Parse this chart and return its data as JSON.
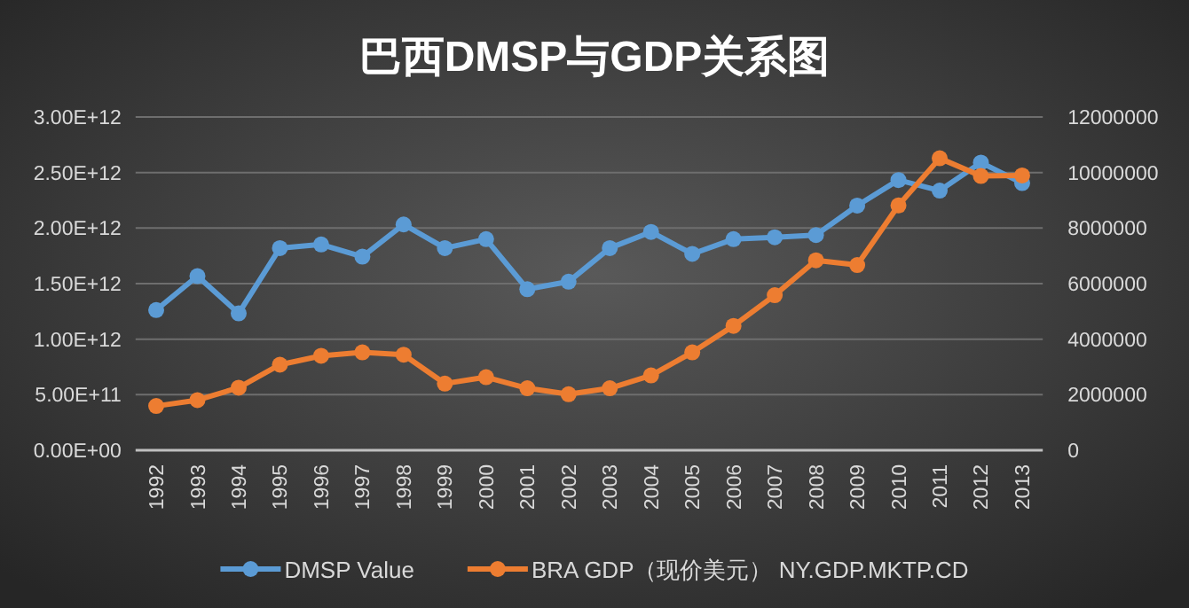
{
  "chart_data": {
    "type": "line",
    "title": "巴西DMSP与GDP关系图",
    "categories": [
      "1992",
      "1993",
      "1994",
      "1995",
      "1996",
      "1997",
      "1998",
      "1999",
      "2000",
      "2001",
      "2002",
      "2003",
      "2004",
      "2005",
      "2006",
      "2007",
      "2008",
      "2009",
      "2010",
      "2011",
      "2012",
      "2013"
    ],
    "series": [
      {
        "name": "DMSP Value",
        "color": "#5b9bd5",
        "axis": "y2",
        "values": [
          5050000,
          6270000,
          4930000,
          7280000,
          7410000,
          6970000,
          8130000,
          7280000,
          7600000,
          5800000,
          6070000,
          7280000,
          7860000,
          7070000,
          7600000,
          7670000,
          7750000,
          8810000,
          9730000,
          9350000,
          10360000,
          9620000
        ]
      },
      {
        "name": "BRA GDP（现价美元） NY.GDP.MKTP.CD",
        "color": "#ed7d31",
        "axis": "y",
        "values": [
          398000000000.0,
          451000000000.0,
          563000000000.0,
          770000000000.0,
          850000000000.0,
          881000000000.0,
          860000000000.0,
          600000000000.0,
          658000000000.0,
          558000000000.0,
          504000000000.0,
          558000000000.0,
          674000000000.0,
          881000000000.0,
          1120000000000.0,
          1396000000000.0,
          1710000000000.0,
          1667000000000.0,
          2204000000000.0,
          2628000000000.0,
          2469000000000.0,
          2474000000000.0
        ]
      }
    ],
    "ylim": [
      0,
      3000000000000.0
    ],
    "yticks": [
      {
        "value": 0,
        "label": "0.00E+00"
      },
      {
        "value": 500000000000.0,
        "label": "5.00E+11"
      },
      {
        "value": 1000000000000.0,
        "label": "1.00E+12"
      },
      {
        "value": 1500000000000.0,
        "label": "1.50E+12"
      },
      {
        "value": 2000000000000.0,
        "label": "2.00E+12"
      },
      {
        "value": 2500000000000.0,
        "label": "2.50E+12"
      },
      {
        "value": 3000000000000.0,
        "label": "3.00E+12"
      }
    ],
    "y2lim": [
      0,
      12000000
    ],
    "y2ticks": [
      0,
      2000000,
      4000000,
      6000000,
      8000000,
      10000000,
      12000000
    ],
    "grid": "y",
    "legend": "bottom",
    "marker": "circle",
    "line_style": "solid"
  }
}
